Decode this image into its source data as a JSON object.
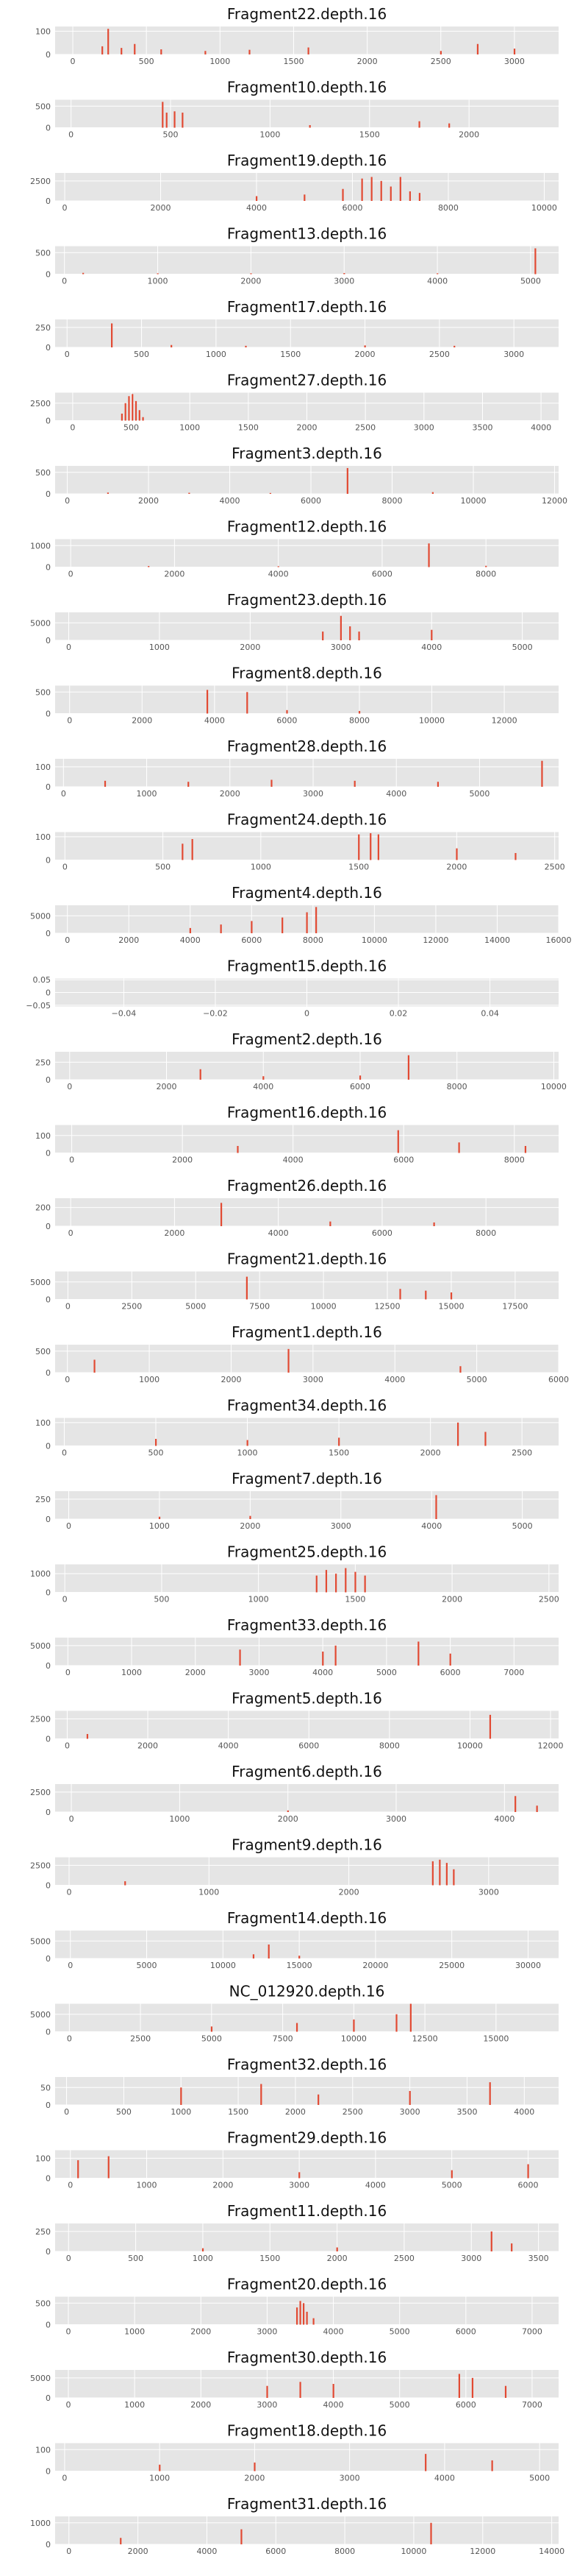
{
  "colors": {
    "panel_bg": "#e5e5e5",
    "grid": "#ffffff",
    "bar": "#e24a33",
    "text": "#111111",
    "tick_text": "#555555"
  },
  "chart_data": [
    {
      "type": "bar",
      "title": "Fragment22.depth.16",
      "xlim": [
        -120,
        3300
      ],
      "ylim": [
        0,
        120
      ],
      "xticks": [
        0,
        500,
        1000,
        1500,
        2000,
        2500,
        3000
      ],
      "yticks": [
        0,
        100
      ],
      "x": [
        200,
        240,
        330,
        420,
        600,
        900,
        1200,
        1600,
        2500,
        2750,
        3000
      ],
      "values": [
        35,
        110,
        28,
        45,
        22,
        15,
        20,
        30,
        15,
        45,
        25
      ]
    },
    {
      "type": "bar",
      "title": "Fragment10.depth.16",
      "xlim": [
        -80,
        2450
      ],
      "ylim": [
        0,
        650
      ],
      "xticks": [
        0,
        500,
        1000,
        1500,
        2000
      ],
      "yticks": [
        0,
        500
      ],
      "x": [
        460,
        480,
        520,
        560,
        1200,
        1750,
        1900
      ],
      "values": [
        600,
        350,
        380,
        350,
        60,
        150,
        100
      ]
    },
    {
      "type": "bar",
      "title": "Fragment19.depth.16",
      "xlim": [
        -200,
        10300
      ],
      "ylim": [
        0,
        3500
      ],
      "xticks": [
        0,
        2000,
        4000,
        6000,
        8000,
        10000
      ],
      "yticks": [
        0,
        2500
      ],
      "x": [
        4000,
        5000,
        5800,
        6200,
        6400,
        6600,
        6800,
        7000,
        7200,
        7400
      ],
      "values": [
        600,
        800,
        1500,
        2800,
        3000,
        2500,
        1800,
        3000,
        1200,
        1000
      ]
    },
    {
      "type": "bar",
      "title": "Fragment13.depth.16",
      "xlim": [
        -100,
        5300
      ],
      "ylim": [
        0,
        650
      ],
      "xticks": [
        0,
        1000,
        2000,
        3000,
        4000,
        5000
      ],
      "yticks": [
        0,
        500
      ],
      "x": [
        200,
        1000,
        2000,
        3000,
        4000,
        5050
      ],
      "values": [
        30,
        20,
        20,
        25,
        20,
        600
      ]
    },
    {
      "type": "bar",
      "title": "Fragment17.depth.16",
      "xlim": [
        -80,
        3300
      ],
      "ylim": [
        0,
        350
      ],
      "xticks": [
        0,
        500,
        1000,
        1500,
        2000,
        2500,
        3000
      ],
      "yticks": [
        0,
        250
      ],
      "x": [
        300,
        700,
        1200,
        2000,
        2600
      ],
      "values": [
        300,
        30,
        20,
        25,
        20
      ]
    },
    {
      "type": "bar",
      "title": "Fragment27.depth.16",
      "xlim": [
        -150,
        4150
      ],
      "ylim": [
        0,
        4000
      ],
      "xticks": [
        0,
        500,
        1000,
        1500,
        2000,
        2500,
        3000,
        3500,
        4000
      ],
      "yticks": [
        0,
        2500
      ],
      "x": [
        420,
        450,
        480,
        510,
        540,
        570,
        600
      ],
      "values": [
        1000,
        2500,
        3500,
        3800,
        2800,
        1500,
        500
      ]
    },
    {
      "type": "bar",
      "title": "Fragment3.depth.16",
      "xlim": [
        -300,
        12100
      ],
      "ylim": [
        0,
        650
      ],
      "xticks": [
        0,
        2000,
        4000,
        6000,
        8000,
        10000,
        12000
      ],
      "yticks": [
        0,
        500
      ],
      "x": [
        1000,
        3000,
        5000,
        6900,
        9000
      ],
      "values": [
        30,
        25,
        20,
        600,
        40
      ]
    },
    {
      "type": "bar",
      "title": "Fragment12.depth.16",
      "xlim": [
        -300,
        9400
      ],
      "ylim": [
        0,
        1300
      ],
      "xticks": [
        0,
        2000,
        4000,
        6000,
        8000
      ],
      "yticks": [
        0,
        1000
      ],
      "x": [
        1500,
        4000,
        6900,
        8000
      ],
      "values": [
        50,
        40,
        1100,
        60
      ]
    },
    {
      "type": "bar",
      "title": "Fragment23.depth.16",
      "xlim": [
        -150,
        5400
      ],
      "ylim": [
        0,
        8000
      ],
      "xticks": [
        0,
        1000,
        2000,
        3000,
        4000,
        5000
      ],
      "yticks": [
        0,
        5000
      ],
      "x": [
        2800,
        3000,
        3100,
        3200,
        4000
      ],
      "values": [
        2500,
        7000,
        4000,
        2500,
        3000
      ]
    },
    {
      "type": "bar",
      "title": "Fragment8.depth.16",
      "xlim": [
        -400,
        13500
      ],
      "ylim": [
        0,
        650
      ],
      "xticks": [
        0,
        2000,
        4000,
        6000,
        8000,
        10000,
        12000
      ],
      "yticks": [
        0,
        500
      ],
      "x": [
        3800,
        4900,
        6000,
        8000
      ],
      "values": [
        550,
        500,
        80,
        60
      ]
    },
    {
      "type": "bar",
      "title": "Fragment28.depth.16",
      "xlim": [
        -100,
        5950
      ],
      "ylim": [
        0,
        140
      ],
      "xticks": [
        0,
        1000,
        2000,
        3000,
        4000,
        5000
      ],
      "yticks": [
        0,
        100
      ],
      "x": [
        500,
        1500,
        2500,
        3500,
        4500,
        5750
      ],
      "values": [
        30,
        25,
        35,
        30,
        25,
        130
      ]
    },
    {
      "type": "bar",
      "title": "Fragment24.depth.16",
      "xlim": [
        -50,
        2520
      ],
      "ylim": [
        0,
        120
      ],
      "xticks": [
        0,
        500,
        1000,
        1500,
        2000,
        2500
      ],
      "yticks": [
        0,
        100
      ],
      "x": [
        600,
        650,
        1500,
        1560,
        1600,
        2000,
        2300
      ],
      "values": [
        70,
        90,
        110,
        115,
        110,
        50,
        30
      ]
    },
    {
      "type": "bar",
      "title": "Fragment4.depth.16",
      "xlim": [
        -400,
        16000
      ],
      "ylim": [
        0,
        8000
      ],
      "xticks": [
        0,
        2000,
        4000,
        6000,
        8000,
        10000,
        12000,
        14000,
        16000
      ],
      "yticks": [
        0,
        5000
      ],
      "x": [
        4000,
        5000,
        6000,
        7000,
        7800,
        8100
      ],
      "values": [
        1500,
        2500,
        3500,
        4500,
        6000,
        7500
      ]
    },
    {
      "type": "bar",
      "title": "Fragment15.depth.16",
      "xlim": [
        -0.055,
        0.055
      ],
      "ylim": [
        -0.055,
        0.055
      ],
      "xticks": [
        -0.04,
        -0.02,
        0.0,
        0.02,
        0.04
      ],
      "yticks": [
        -0.05,
        0.0,
        0.05
      ],
      "x": [],
      "values": []
    },
    {
      "type": "bar",
      "title": "Fragment2.depth.16",
      "xlim": [
        -300,
        10100
      ],
      "ylim": [
        0,
        400
      ],
      "xticks": [
        0,
        2000,
        4000,
        6000,
        8000,
        10000
      ],
      "yticks": [
        0,
        250
      ],
      "x": [
        2700,
        4000,
        6000,
        7000
      ],
      "values": [
        150,
        50,
        60,
        350
      ]
    },
    {
      "type": "bar",
      "title": "Fragment16.depth.16",
      "xlim": [
        -300,
        8800
      ],
      "ylim": [
        0,
        160
      ],
      "xticks": [
        0,
        2000,
        4000,
        6000,
        8000
      ],
      "yticks": [
        0,
        100
      ],
      "x": [
        3000,
        5900,
        7000,
        8200
      ],
      "values": [
        40,
        130,
        60,
        40
      ]
    },
    {
      "type": "bar",
      "title": "Fragment26.depth.16",
      "xlim": [
        -300,
        9400
      ],
      "ylim": [
        0,
        300
      ],
      "xticks": [
        0,
        2000,
        4000,
        6000,
        8000
      ],
      "yticks": [
        0,
        200
      ],
      "x": [
        2900,
        5000,
        7000
      ],
      "values": [
        250,
        50,
        40
      ]
    },
    {
      "type": "bar",
      "title": "Fragment21.depth.16",
      "xlim": [
        -500,
        19200
      ],
      "ylim": [
        0,
        8000
      ],
      "xticks": [
        0,
        2500,
        5000,
        7500,
        10000,
        12500,
        15000,
        17500
      ],
      "yticks": [
        0,
        5000
      ],
      "x": [
        7000,
        13000,
        14000,
        15000
      ],
      "values": [
        6500,
        3000,
        2500,
        2000
      ]
    },
    {
      "type": "bar",
      "title": "Fragment1.depth.16",
      "xlim": [
        -150,
        6000
      ],
      "ylim": [
        0,
        650
      ],
      "xticks": [
        0,
        1000,
        2000,
        3000,
        4000,
        5000,
        6000
      ],
      "yticks": [
        0,
        500
      ],
      "x": [
        330,
        2700,
        4800
      ],
      "values": [
        300,
        550,
        150
      ]
    },
    {
      "type": "bar",
      "title": "Fragment34.depth.16",
      "xlim": [
        -50,
        2700
      ],
      "ylim": [
        0,
        120
      ],
      "xticks": [
        0,
        500,
        1000,
        1500,
        2000,
        2500
      ],
      "yticks": [
        0,
        100
      ],
      "x": [
        500,
        1000,
        1500,
        2150,
        2300
      ],
      "values": [
        30,
        25,
        35,
        100,
        60
      ]
    },
    {
      "type": "bar",
      "title": "Fragment7.depth.16",
      "xlim": [
        -150,
        5400
      ],
      "ylim": [
        0,
        350
      ],
      "xticks": [
        0,
        1000,
        2000,
        3000,
        4000,
        5000
      ],
      "yticks": [
        0,
        250
      ],
      "x": [
        1000,
        2000,
        4050
      ],
      "values": [
        30,
        40,
        300
      ]
    },
    {
      "type": "bar",
      "title": "Fragment25.depth.16",
      "xlim": [
        -50,
        2550
      ],
      "ylim": [
        0,
        1500
      ],
      "xticks": [
        0,
        500,
        1000,
        1500,
        2000,
        2500
      ],
      "yticks": [
        0,
        1000
      ],
      "x": [
        1300,
        1350,
        1400,
        1450,
        1500,
        1550
      ],
      "values": [
        900,
        1200,
        1000,
        1300,
        1100,
        900
      ]
    },
    {
      "type": "bar",
      "title": "Fragment33.depth.16",
      "xlim": [
        -200,
        7700
      ],
      "ylim": [
        0,
        7000
      ],
      "xticks": [
        0,
        1000,
        2000,
        3000,
        4000,
        5000,
        6000,
        7000
      ],
      "yticks": [
        0,
        5000
      ],
      "x": [
        2700,
        4000,
        4200,
        5500,
        6000
      ],
      "values": [
        4000,
        3500,
        5000,
        6000,
        3000
      ]
    },
    {
      "type": "bar",
      "title": "Fragment5.depth.16",
      "xlim": [
        -300,
        12200
      ],
      "ylim": [
        0,
        3500
      ],
      "xticks": [
        0,
        2000,
        4000,
        6000,
        8000,
        10000,
        12000
      ],
      "yticks": [
        0,
        2500
      ],
      "x": [
        500,
        10500
      ],
      "values": [
        600,
        3000
      ]
    },
    {
      "type": "bar",
      "title": "Fragment6.depth.16",
      "xlim": [
        -150,
        4500
      ],
      "ylim": [
        0,
        3500
      ],
      "xticks": [
        0,
        1000,
        2000,
        3000,
        4000
      ],
      "yticks": [
        0,
        2500
      ],
      "x": [
        2000,
        4100,
        4300
      ],
      "values": [
        200,
        2000,
        800
      ]
    },
    {
      "type": "bar",
      "title": "Fragment9.depth.16",
      "xlim": [
        -100,
        3500
      ],
      "ylim": [
        0,
        3500
      ],
      "xticks": [
        0,
        1000,
        2000,
        3000
      ],
      "yticks": [
        0,
        2500
      ],
      "x": [
        400,
        2600,
        2650,
        2700,
        2750
      ],
      "values": [
        500,
        3000,
        3200,
        2800,
        2000
      ]
    },
    {
      "type": "bar",
      "title": "Fragment14.depth.16",
      "xlim": [
        -1000,
        32000
      ],
      "ylim": [
        0,
        8000
      ],
      "xticks": [
        0,
        5000,
        10000,
        15000,
        20000,
        25000,
        30000
      ],
      "yticks": [
        0,
        5000
      ],
      "x": [
        12000,
        13000,
        15000
      ],
      "values": [
        1200,
        4000,
        800
      ]
    },
    {
      "type": "bar",
      "title": "NC_012920.depth.16",
      "xlim": [
        -500,
        17200
      ],
      "ylim": [
        0,
        8000
      ],
      "xticks": [
        0,
        2500,
        5000,
        7500,
        10000,
        12500,
        15000
      ],
      "yticks": [
        0,
        5000
      ],
      "x": [
        5000,
        8000,
        10000,
        11500,
        12000
      ],
      "values": [
        1500,
        2500,
        3500,
        5000,
        8000
      ]
    },
    {
      "type": "bar",
      "title": "Fragment32.depth.16",
      "xlim": [
        -100,
        4300
      ],
      "ylim": [
        0,
        80
      ],
      "xticks": [
        0,
        500,
        1000,
        1500,
        2000,
        2500,
        3000,
        3500,
        4000
      ],
      "yticks": [
        0,
        50
      ],
      "x": [
        1000,
        1700,
        2200,
        3000,
        3700
      ],
      "values": [
        50,
        60,
        30,
        40,
        65
      ]
    },
    {
      "type": "bar",
      "title": "Fragment29.depth.16",
      "xlim": [
        -200,
        6400
      ],
      "ylim": [
        0,
        140
      ],
      "xticks": [
        0,
        1000,
        2000,
        3000,
        4000,
        5000,
        6000
      ],
      "yticks": [
        0,
        100
      ],
      "x": [
        100,
        500,
        3000,
        5000,
        6000
      ],
      "values": [
        90,
        110,
        30,
        40,
        70
      ]
    },
    {
      "type": "bar",
      "title": "Fragment11.depth.16",
      "xlim": [
        -100,
        3650
      ],
      "ylim": [
        0,
        350
      ],
      "xticks": [
        0,
        500,
        1000,
        1500,
        2000,
        2500,
        3000,
        3500
      ],
      "yticks": [
        0,
        250
      ],
      "x": [
        1000,
        2000,
        3150,
        3300
      ],
      "values": [
        40,
        50,
        250,
        100
      ]
    },
    {
      "type": "bar",
      "title": "Fragment20.depth.16",
      "xlim": [
        -200,
        7400
      ],
      "ylim": [
        0,
        650
      ],
      "xticks": [
        0,
        1000,
        2000,
        3000,
        4000,
        5000,
        6000,
        7000
      ],
      "yticks": [
        0,
        500
      ],
      "x": [
        3450,
        3500,
        3550,
        3600,
        3700
      ],
      "values": [
        400,
        550,
        500,
        300,
        150
      ]
    },
    {
      "type": "bar",
      "title": "Fragment30.depth.16",
      "xlim": [
        -200,
        7400
      ],
      "ylim": [
        0,
        7000
      ],
      "xticks": [
        0,
        1000,
        2000,
        3000,
        4000,
        5000,
        6000,
        7000
      ],
      "yticks": [
        0,
        5000
      ],
      "x": [
        3000,
        3500,
        4000,
        5900,
        6100,
        6600
      ],
      "values": [
        3000,
        4000,
        3500,
        6000,
        5000,
        3000
      ]
    },
    {
      "type": "bar",
      "title": "Fragment18.depth.16",
      "xlim": [
        -100,
        5200
      ],
      "ylim": [
        0,
        130
      ],
      "xticks": [
        0,
        1000,
        2000,
        3000,
        4000,
        5000
      ],
      "yticks": [
        0,
        100
      ],
      "x": [
        1000,
        2000,
        3800,
        4500
      ],
      "values": [
        30,
        40,
        80,
        50
      ]
    },
    {
      "type": "bar",
      "title": "Fragment31.depth.16",
      "xlim": [
        -400,
        14200
      ],
      "ylim": [
        0,
        1300
      ],
      "xticks": [
        0,
        2000,
        4000,
        6000,
        8000,
        10000,
        12000,
        14000
      ],
      "yticks": [
        0,
        1000
      ],
      "x": [
        1500,
        5000,
        10500
      ],
      "values": [
        300,
        700,
        1000
      ]
    }
  ]
}
